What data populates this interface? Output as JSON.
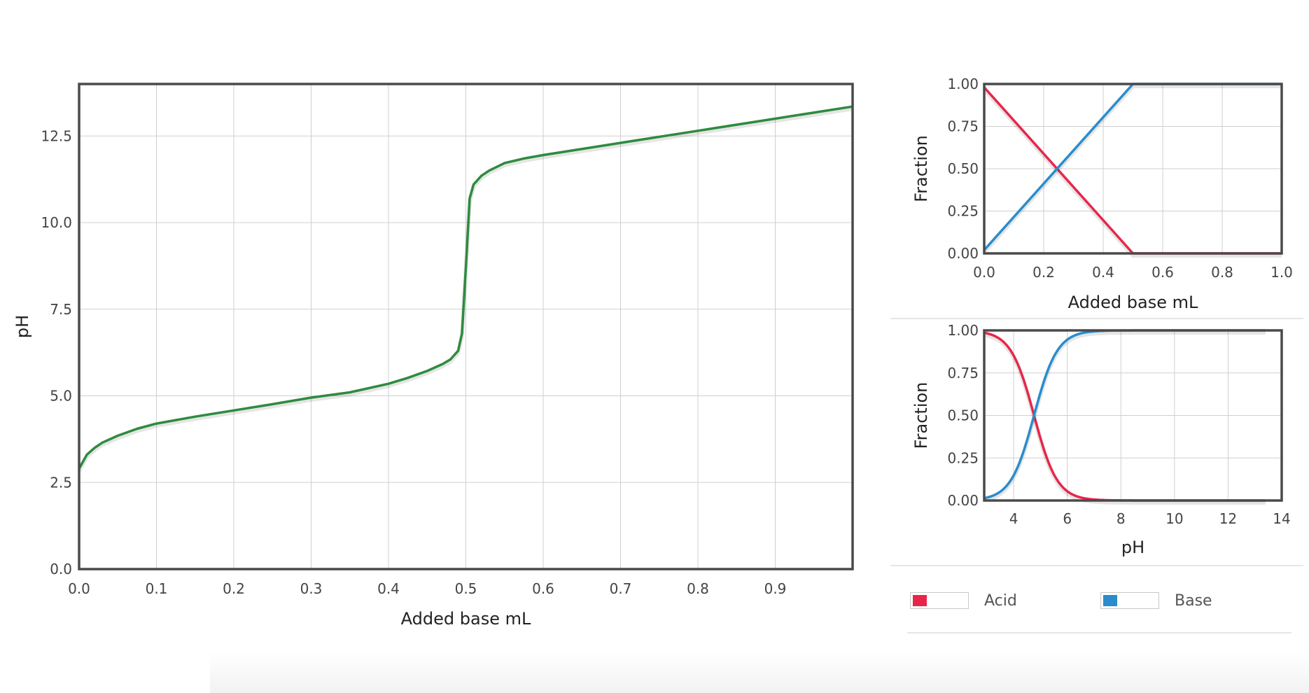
{
  "colors": {
    "titration": "#2e8b3e",
    "acid": "#e8264a",
    "base": "#2a8ccc"
  },
  "legend": [
    {
      "label": "Acid",
      "color": "#e8264a"
    },
    {
      "label": "Base",
      "color": "#2a8ccc"
    }
  ],
  "chart_data": [
    {
      "type": "line",
      "xlabel": "Added base mL",
      "ylabel": "pH",
      "xlim": [
        0,
        1
      ],
      "ylim": [
        0,
        14
      ],
      "xticks": [
        0.0,
        0.1,
        0.2,
        0.3,
        0.4,
        0.5,
        0.6,
        0.7,
        0.8,
        0.9
      ],
      "xtick_labels": [
        "0.0",
        "0.1",
        "0.2",
        "0.3",
        "0.4",
        "0.5",
        "0.6",
        "0.7",
        "0.8",
        "0.9"
      ],
      "yticks": [
        0.0,
        2.5,
        5.0,
        7.5,
        10.0,
        12.5
      ],
      "ytick_labels": [
        "0.0",
        "2.5",
        "5.0",
        "7.5",
        "10.0",
        "12.5"
      ],
      "grid": true,
      "series": [
        {
          "color": "#2e8b3e",
          "x": [
            0.0,
            0.01,
            0.02,
            0.03,
            0.05,
            0.075,
            0.1,
            0.15,
            0.2,
            0.25,
            0.3,
            0.35,
            0.4,
            0.425,
            0.45,
            0.47,
            0.48,
            0.49,
            0.495,
            0.5,
            0.505,
            0.51,
            0.52,
            0.53,
            0.55,
            0.575,
            0.6,
            0.7,
            0.8,
            0.9,
            1.0
          ],
          "y": [
            2.9,
            3.3,
            3.5,
            3.65,
            3.85,
            4.05,
            4.2,
            4.4,
            4.58,
            4.76,
            4.95,
            5.1,
            5.35,
            5.52,
            5.72,
            5.92,
            6.05,
            6.3,
            6.8,
            8.7,
            10.7,
            11.1,
            11.35,
            11.5,
            11.72,
            11.85,
            11.95,
            12.3,
            12.65,
            13.0,
            13.35
          ]
        }
      ]
    },
    {
      "type": "line",
      "xlabel": "Added base mL",
      "ylabel": "Fraction",
      "xlim": [
        0,
        1
      ],
      "ylim": [
        0,
        1
      ],
      "xticks": [
        0.0,
        0.2,
        0.4,
        0.6,
        0.8,
        1.0
      ],
      "xtick_labels": [
        "0.0",
        "0.2",
        "0.4",
        "0.6",
        "0.8",
        "1.0"
      ],
      "yticks": [
        0.0,
        0.25,
        0.5,
        0.75,
        1.0
      ],
      "ytick_labels": [
        "0.00",
        "0.25",
        "0.50",
        "0.75",
        "1.00"
      ],
      "grid": true,
      "series": [
        {
          "name": "Acid",
          "color": "#e8264a",
          "x": [
            0.0,
            0.5,
            1.0
          ],
          "y": [
            0.98,
            0.0,
            0.0
          ]
        },
        {
          "name": "Base",
          "color": "#2a8ccc",
          "x": [
            0.0,
            0.5,
            1.0
          ],
          "y": [
            0.02,
            1.0,
            1.0
          ]
        }
      ]
    },
    {
      "type": "line",
      "xlabel": "pH",
      "ylabel": "Fraction",
      "xlim": [
        2.9,
        14
      ],
      "ylim": [
        0,
        1
      ],
      "xticks": [
        4,
        6,
        8,
        10,
        12,
        14
      ],
      "xtick_labels": [
        "4",
        "6",
        "8",
        "10",
        "12",
        "14"
      ],
      "yticks": [
        0.0,
        0.25,
        0.5,
        0.75,
        1.0
      ],
      "ytick_labels": [
        "0.00",
        "0.25",
        "0.50",
        "0.75",
        "1.00"
      ],
      "grid": true,
      "series": [
        {
          "name": "Acid",
          "color": "#e8264a",
          "pka": 4.76,
          "x_range": [
            2.9,
            13.4
          ],
          "fraction": "acid"
        },
        {
          "name": "Base",
          "color": "#2a8ccc",
          "pka": 4.76,
          "x_range": [
            2.9,
            13.4
          ],
          "fraction": "base"
        }
      ]
    }
  ]
}
